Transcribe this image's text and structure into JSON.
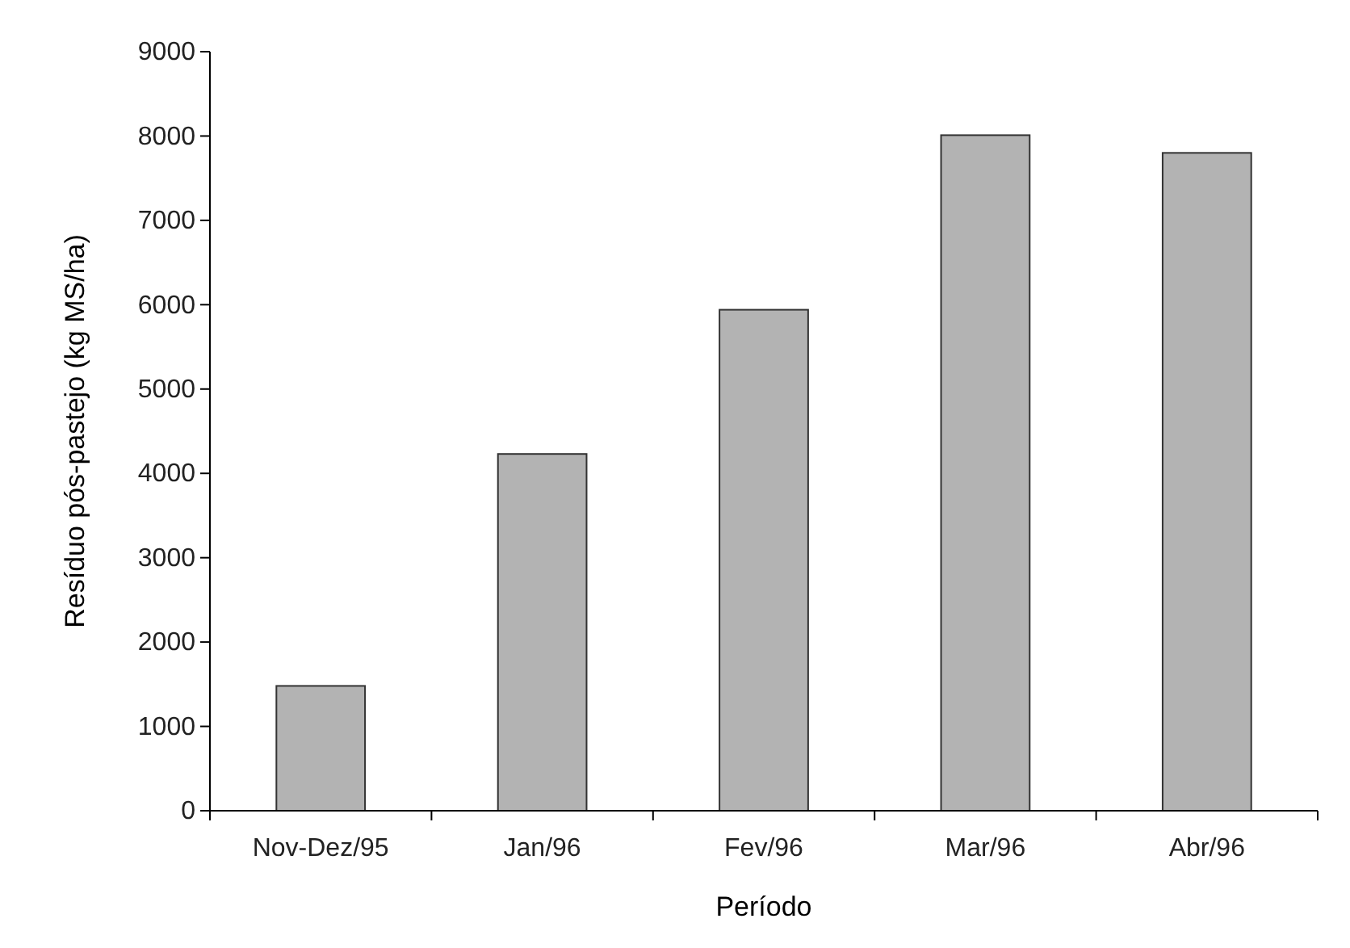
{
  "chart_data": {
    "type": "bar",
    "xlabel": "Período",
    "ylabel": "Resíduo pós-pastejo (kg MS/ha)",
    "categories": [
      "Nov-Dez/95",
      "Jan/96",
      "Fev/96",
      "Mar/96",
      "Abr/96"
    ],
    "values": [
      1480,
      4230,
      5940,
      8010,
      7800
    ],
    "color": "#b3b3b3",
    "ylim": [
      0,
      9000
    ],
    "yticks": [
      0,
      1000,
      2000,
      3000,
      4000,
      5000,
      6000,
      7000,
      8000,
      9000
    ],
    "grid": false
  }
}
